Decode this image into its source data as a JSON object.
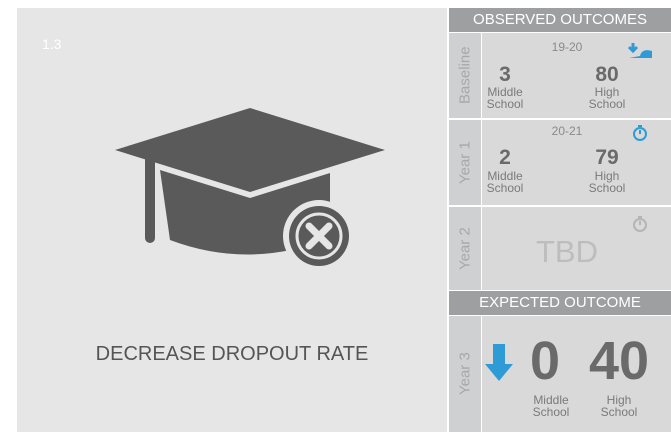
{
  "tile": {
    "id": "1.3",
    "title": "DECREASE DROPOUT RATE"
  },
  "observed": {
    "heading": "OBSERVED OUTCOMES",
    "rows": [
      {
        "label": "Baseline",
        "period": "19-20",
        "middle": 3,
        "high": 80
      },
      {
        "label": "Year 1",
        "period": "20-21",
        "middle": 2,
        "high": 79
      },
      {
        "label": "Year 2",
        "status": "TBD"
      }
    ]
  },
  "expected": {
    "heading": "EXPECTED OUTCOME",
    "row": {
      "label": "Year 3",
      "middle": 0,
      "high": 40
    }
  },
  "labels": {
    "middle": "Middle School",
    "high": "High School"
  }
}
